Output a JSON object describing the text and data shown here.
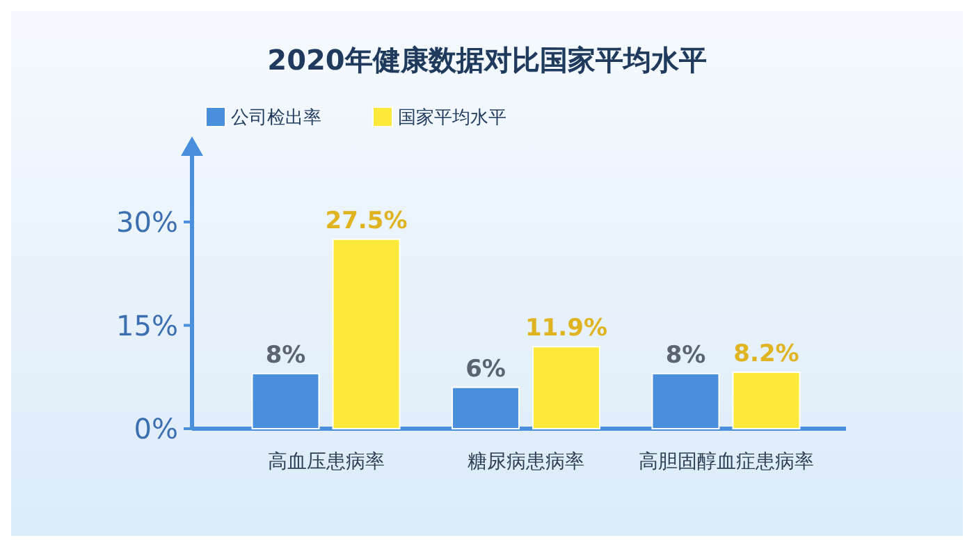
{
  "chart_data": {
    "type": "bar",
    "title": "2020年健康数据对比国家平均水平",
    "categories": [
      "高血压患病率",
      "糖尿病患病率",
      "高胆固醇血症患病率"
    ],
    "series": [
      {
        "name": "公司检出率",
        "color": "#4a8fdc",
        "values": [
          8,
          6,
          8
        ],
        "value_labels": [
          "8%",
          "6%",
          "8%"
        ]
      },
      {
        "name": "国家平均水平",
        "color": "#fde93a",
        "values": [
          27.5,
          11.9,
          8.2
        ],
        "value_labels": [
          "27.5%",
          "11.9%",
          "8.2%"
        ]
      }
    ],
    "ylim": [
      0,
      40
    ],
    "yticks": [
      {
        "value": 0,
        "label": "0%"
      },
      {
        "value": 15,
        "label": "15%"
      },
      {
        "value": 30,
        "label": "30%"
      }
    ],
    "grid": false,
    "legend": "top left"
  }
}
